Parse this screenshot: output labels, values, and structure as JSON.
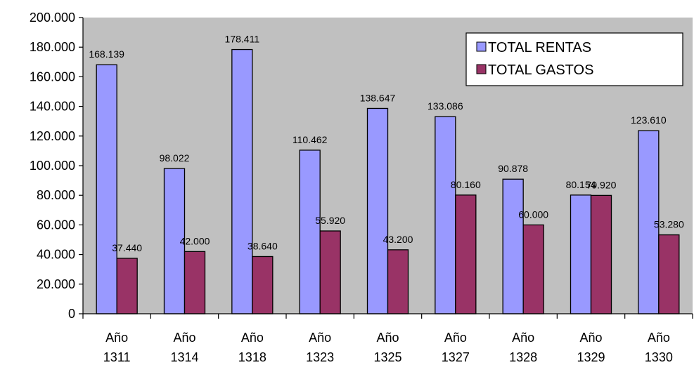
{
  "chart_data": {
    "type": "bar",
    "categories": [
      [
        "Año",
        "1311"
      ],
      [
        "Año",
        "1314"
      ],
      [
        "Año",
        "1318"
      ],
      [
        "Año",
        "1323"
      ],
      [
        "Año",
        "1325"
      ],
      [
        "Año",
        "1327"
      ],
      [
        "Año",
        "1328"
      ],
      [
        "Año",
        "1329"
      ],
      [
        "Año",
        "1330"
      ]
    ],
    "series": [
      {
        "name": "TOTAL RENTAS",
        "color": "#9999ff",
        "values": [
          168139,
          98022,
          178411,
          110462,
          138647,
          133086,
          90878,
          80154,
          123610
        ],
        "labels": [
          "168.139",
          "98.022",
          "178.411",
          "110.462",
          "138.647",
          "133.086",
          "90.878",
          "80.154",
          "123.610"
        ]
      },
      {
        "name": "TOTAL GASTOS",
        "color": "#993366",
        "values": [
          37440,
          42000,
          38640,
          55920,
          43200,
          80160,
          60000,
          79920,
          53280
        ],
        "labels": [
          "37.440",
          "42.000",
          "38.640",
          "55.920",
          "43.200",
          "80.160",
          "60.000",
          "79.920",
          "53.280"
        ]
      }
    ],
    "ylim": [
      0,
      200000
    ],
    "yticks": [
      0,
      20000,
      40000,
      60000,
      80000,
      100000,
      120000,
      140000,
      160000,
      180000,
      200000
    ],
    "ytick_labels": [
      "0",
      "20.000",
      "40.000",
      "60.000",
      "80.000",
      "100.000",
      "120.000",
      "140.000",
      "160.000",
      "180.000",
      "200.000"
    ],
    "plot_background": "#c0c0c0",
    "grid": false,
    "legend_position": "top-right",
    "title": "",
    "xlabel": "",
    "ylabel": ""
  }
}
